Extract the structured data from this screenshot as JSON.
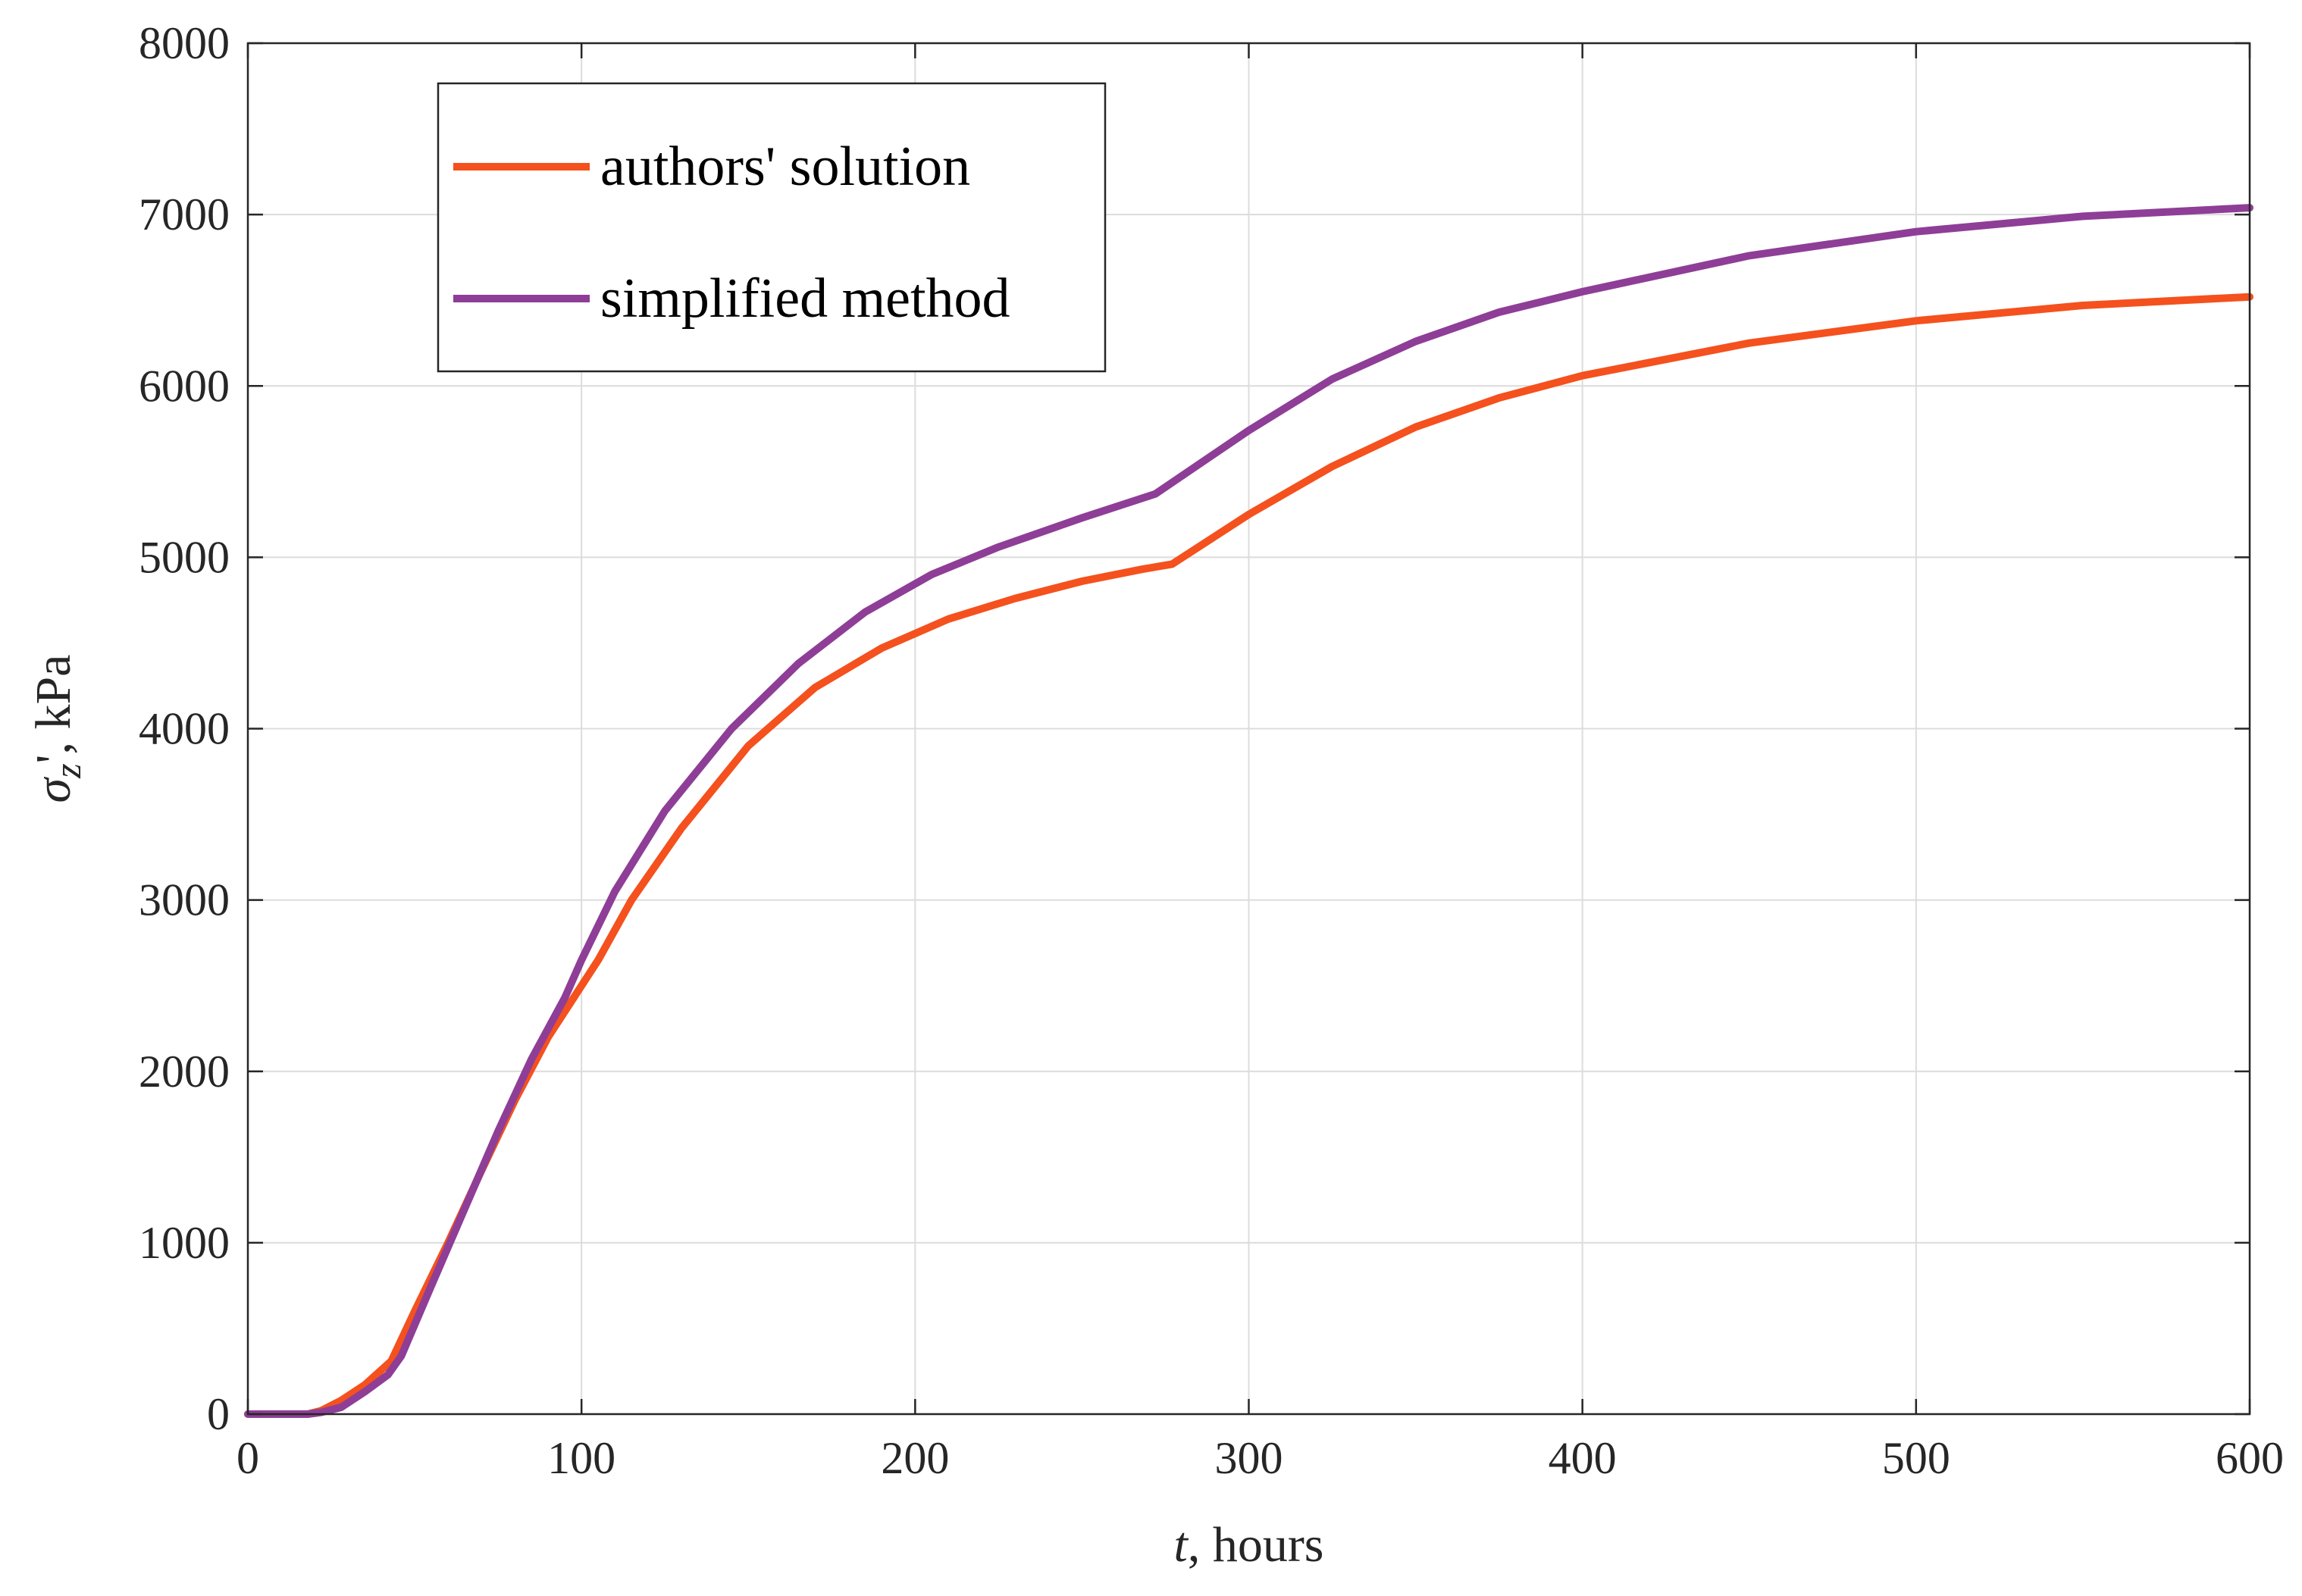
{
  "chart_data": {
    "type": "line",
    "xlabel": {
      "italic": "t",
      "rest": ", hours"
    },
    "ylabel": {
      "sigma": "σ",
      "sub": "z",
      "rest": "', kPa"
    },
    "xlim": [
      0,
      600
    ],
    "ylim": [
      0,
      8000
    ],
    "xticks": [
      0,
      100,
      200,
      300,
      400,
      500,
      600
    ],
    "yticks": [
      0,
      1000,
      2000,
      3000,
      4000,
      5000,
      6000,
      7000,
      8000
    ],
    "grid": true,
    "legend_position": "top-left",
    "series": [
      {
        "name": "authors' solution",
        "color": "#f4511e",
        "points": [
          [
            0,
            0
          ],
          [
            10,
            0
          ],
          [
            18,
            0
          ],
          [
            22,
            20
          ],
          [
            28,
            80
          ],
          [
            35,
            170
          ],
          [
            43,
            310
          ],
          [
            50,
            600
          ],
          [
            60,
            1000
          ],
          [
            70,
            1420
          ],
          [
            80,
            1830
          ],
          [
            90,
            2200
          ],
          [
            100,
            2500
          ],
          [
            105,
            2650
          ],
          [
            115,
            3000
          ],
          [
            130,
            3420
          ],
          [
            150,
            3900
          ],
          [
            170,
            4240
          ],
          [
            190,
            4470
          ],
          [
            210,
            4640
          ],
          [
            230,
            4760
          ],
          [
            250,
            4860
          ],
          [
            268,
            4930
          ],
          [
            277,
            4960
          ],
          [
            300,
            5250
          ],
          [
            325,
            5530
          ],
          [
            350,
            5760
          ],
          [
            375,
            5930
          ],
          [
            400,
            6060
          ],
          [
            450,
            6250
          ],
          [
            500,
            6380
          ],
          [
            550,
            6470
          ],
          [
            600,
            6520
          ]
        ]
      },
      {
        "name": "simplified method",
        "color": "#8e3e97",
        "points": [
          [
            0,
            0
          ],
          [
            10,
            0
          ],
          [
            18,
            0
          ],
          [
            22,
            10
          ],
          [
            28,
            40
          ],
          [
            35,
            130
          ],
          [
            42,
            230
          ],
          [
            46,
            340
          ],
          [
            55,
            750
          ],
          [
            65,
            1200
          ],
          [
            75,
            1650
          ],
          [
            85,
            2070
          ],
          [
            95,
            2430
          ],
          [
            100,
            2650
          ],
          [
            110,
            3050
          ],
          [
            125,
            3520
          ],
          [
            145,
            4000
          ],
          [
            165,
            4380
          ],
          [
            185,
            4680
          ],
          [
            205,
            4900
          ],
          [
            225,
            5060
          ],
          [
            250,
            5230
          ],
          [
            272,
            5370
          ],
          [
            300,
            5740
          ],
          [
            325,
            6040
          ],
          [
            350,
            6260
          ],
          [
            375,
            6430
          ],
          [
            400,
            6550
          ],
          [
            450,
            6760
          ],
          [
            500,
            6900
          ],
          [
            550,
            6990
          ],
          [
            600,
            7040
          ]
        ]
      }
    ]
  }
}
